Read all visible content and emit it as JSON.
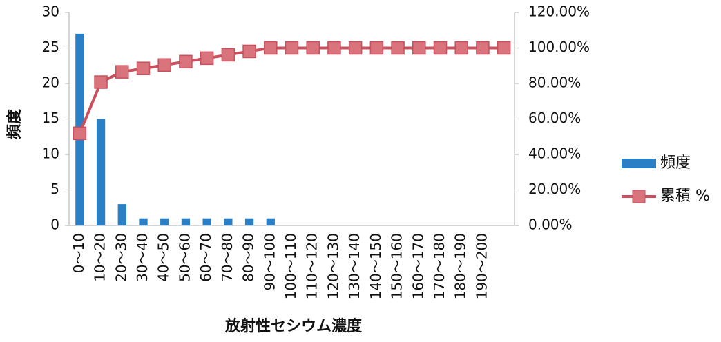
{
  "chart_data": {
    "type": "bar",
    "y_label": "頻度",
    "x_label": "放射性セシウム濃度",
    "categories": [
      "0〜10",
      "10〜20",
      "20〜30",
      "30〜40",
      "40〜50",
      "50〜60",
      "60〜70",
      "70〜80",
      "80〜90",
      "90〜100",
      "100〜110",
      "110〜120",
      "120〜130",
      "130〜140",
      "140〜150",
      "150〜160",
      "160〜170",
      "170〜180",
      "180〜190",
      "190〜200",
      null
    ],
    "series": [
      {
        "name": "頻度",
        "color": "#2b80c5",
        "type": "bar",
        "values": [
          27,
          15,
          3,
          1,
          1,
          1,
          1,
          1,
          1,
          1,
          0,
          0,
          0,
          0,
          0,
          0,
          0,
          0,
          0,
          0,
          0
        ]
      },
      {
        "name": "累積 %",
        "color": "#c9505c",
        "marker_color": "#d9737c",
        "type": "line",
        "axis": "y2",
        "values": [
          51.92,
          80.77,
          86.54,
          88.46,
          90.38,
          92.31,
          94.23,
          96.15,
          98.08,
          100,
          100,
          100,
          100,
          100,
          100,
          100,
          100,
          100,
          100,
          100,
          100
        ]
      }
    ],
    "ylim": [
      0,
      30
    ],
    "yticks": [
      0,
      5,
      10,
      15,
      20,
      25,
      30
    ],
    "y2lim": [
      0,
      120
    ],
    "y2ticks": [
      {
        "value": 0,
        "label": "0.00%"
      },
      {
        "value": 20,
        "label": "20.00%"
      },
      {
        "value": 40,
        "label": "40.00%"
      },
      {
        "value": 60,
        "label": "60.00%"
      },
      {
        "value": 80,
        "label": "80.00%"
      },
      {
        "value": 100,
        "label": "100.00%"
      },
      {
        "value": 120,
        "label": "120.00%"
      }
    ],
    "grid": false,
    "legend": "right"
  }
}
